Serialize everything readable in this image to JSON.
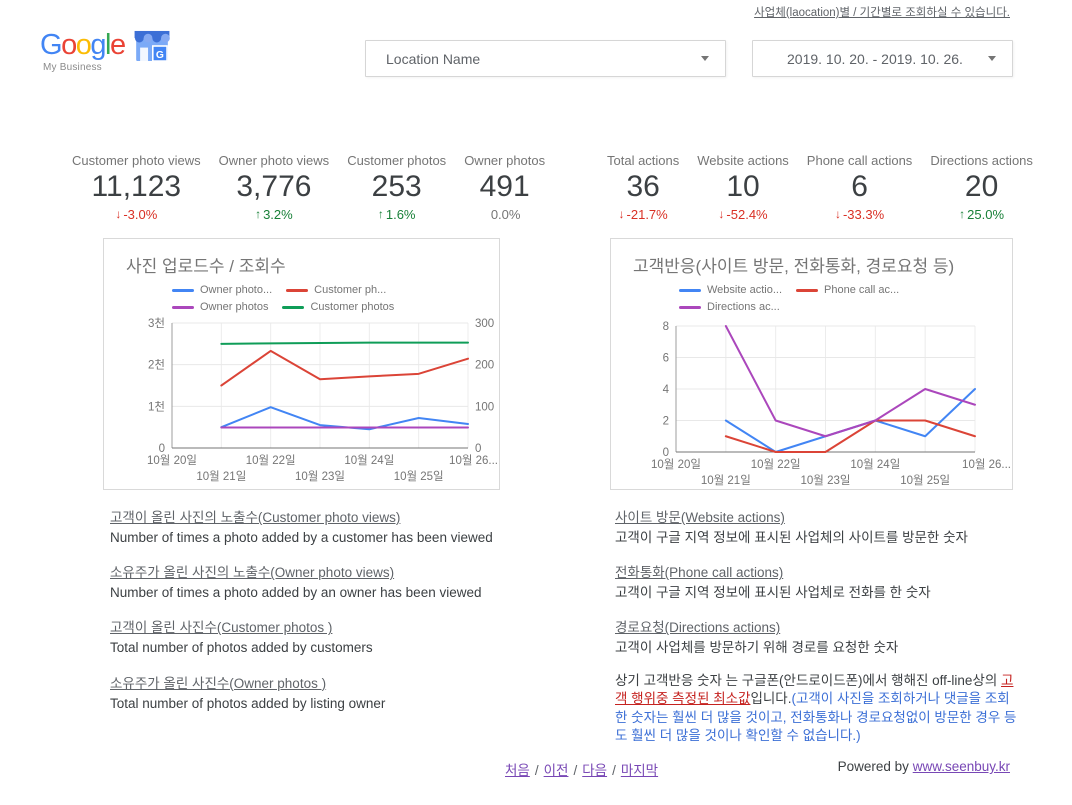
{
  "header": {
    "top_link": "사업체(laocation)별 / 기간별로 조회하실 수 있습니다.",
    "logo": {
      "letters": [
        {
          "ch": "G",
          "color": "#4285F4"
        },
        {
          "ch": "o",
          "color": "#EA4335"
        },
        {
          "ch": "o",
          "color": "#FBBC05"
        },
        {
          "ch": "g",
          "color": "#4285F4"
        },
        {
          "ch": "l",
          "color": "#34A853"
        },
        {
          "ch": "e",
          "color": "#EA4335"
        }
      ],
      "sub": "My Business",
      "icon_letter": "G"
    },
    "location_select": {
      "value": "Location Name"
    },
    "date_select": {
      "value": "2019. 10. 20. - 2019. 10. 26."
    }
  },
  "scorecards": {
    "photo_group": [
      {
        "label": "Customer photo views",
        "value": "11,123",
        "arrow": "↓",
        "delta": "-3.0%",
        "trend": "down",
        "color": "#d93025"
      },
      {
        "label": "Owner photo views",
        "value": "3,776",
        "arrow": "↑",
        "delta": "3.2%",
        "trend": "up",
        "color": "#188038"
      },
      {
        "label": "Customer photos",
        "value": "253",
        "arrow": "↑",
        "delta": "1.6%",
        "trend": "up",
        "color": "#188038"
      },
      {
        "label": "Owner photos",
        "value": "491",
        "arrow": "",
        "delta": "0.0%",
        "trend": "flat",
        "color": "#757575"
      }
    ],
    "action_group": [
      {
        "label": "Total actions",
        "value": "36",
        "arrow": "↓",
        "delta": "-21.7%",
        "trend": "down",
        "color": "#d93025"
      },
      {
        "label": "Website actions",
        "value": "10",
        "arrow": "↓",
        "delta": "-52.4%",
        "trend": "down",
        "color": "#d93025"
      },
      {
        "label": "Phone call actions",
        "value": "6",
        "arrow": "↓",
        "delta": "-33.3%",
        "trend": "down",
        "color": "#d93025"
      },
      {
        "label": "Directions actions",
        "value": "20",
        "arrow": "↑",
        "delta": "25.0%",
        "trend": "up",
        "color": "#188038"
      }
    ]
  },
  "chart_data": [
    {
      "type": "line",
      "title": "사진 업로드수 / 조회수",
      "x": [
        "10월 20일",
        "10월 21일",
        "10월 22일",
        "10월 23일",
        "10월 24일",
        "10월 25일",
        "10월 26일"
      ],
      "x_labels": [
        "10월 20일",
        "10월 21일",
        "10월 22일",
        "10월 23일",
        "10월 24일",
        "10월 25일",
        "10월 26..."
      ],
      "y_left": {
        "ticks": [
          "0",
          "1천",
          "2천",
          "3천"
        ],
        "max": 3000
      },
      "y_right": {
        "ticks": [
          "0",
          "100",
          "200",
          "300"
        ],
        "max": 300
      },
      "grid": true,
      "legend_position": "top",
      "series": [
        {
          "name": "Owner photo...",
          "full_name": "Owner photo views",
          "color": "#4285F4",
          "axis": "left",
          "values": [
            null,
            500,
            980,
            550,
            450,
            720,
            576
          ]
        },
        {
          "name": "Customer ph...",
          "full_name": "Customer photo views",
          "color": "#DB4437",
          "axis": "left",
          "values": [
            null,
            1500,
            2330,
            1650,
            1720,
            1780,
            2143
          ]
        },
        {
          "name": "Owner photos",
          "full_name": "Owner photos",
          "color": "#AB47BC",
          "axis": "left",
          "values": [
            null,
            491,
            491,
            491,
            491,
            491,
            491
          ]
        },
        {
          "name": "Customer photos",
          "full_name": "Customer photos",
          "color": "#0F9D58",
          "axis": "right",
          "values": [
            null,
            250,
            251,
            252,
            253,
            253,
            253
          ]
        }
      ]
    },
    {
      "type": "line",
      "title": "고객반응(사이트 방문, 전화통화, 경로요청 등)",
      "x": [
        "10월 20일",
        "10월 21일",
        "10월 22일",
        "10월 23일",
        "10월 24일",
        "10월 25일",
        "10월 26일"
      ],
      "x_labels": [
        "10월 20일",
        "10월 21일",
        "10월 22일",
        "10월 23일",
        "10월 24일",
        "10월 25일",
        "10월 26..."
      ],
      "y_left": {
        "ticks": [
          "0",
          "2",
          "4",
          "6",
          "8"
        ],
        "max": 8
      },
      "grid": true,
      "legend_position": "top",
      "series": [
        {
          "name": "Website actio...",
          "full_name": "Website actions",
          "color": "#4285F4",
          "axis": "left",
          "values": [
            null,
            2,
            0,
            1,
            2,
            1,
            4
          ]
        },
        {
          "name": "Phone call ac...",
          "full_name": "Phone call actions",
          "color": "#DB4437",
          "axis": "left",
          "values": [
            null,
            1,
            0,
            0,
            2,
            2,
            1
          ]
        },
        {
          "name": "Directions ac...",
          "full_name": "Directions actions",
          "color": "#AB47BC",
          "axis": "left",
          "values": [
            null,
            8,
            2,
            1,
            2,
            4,
            3
          ]
        }
      ]
    }
  ],
  "info_left": {
    "items": [
      {
        "link": "고객이 올린 사진의 노출수(Customer photo views)",
        "desc": "Number of times a photo added by a customer has been viewed"
      },
      {
        "link": "소유주가 올린 사진의 노출수(Owner photo views)",
        "desc": "Number of times a photo added by an owner has been viewed"
      },
      {
        "link": "고객이 올린 사진수(Customer photos )",
        "desc": "Total number of photos added by customers"
      },
      {
        "link": "소유주가 올린 사진수(Owner photos )",
        "desc": "Total number of photos added by listing owner"
      }
    ]
  },
  "info_right": {
    "items": [
      {
        "link": "사이트 방문(Website actions)",
        "desc": "고객이 구글 지역 정보에 표시된 사업체의 사이트를 방문한 숫자"
      },
      {
        "link": "전화통화(Phone call actions)",
        "desc": "고객이 구글 지역 정보에 표시된 사업체로 전화를 한 숫자"
      },
      {
        "link": "경로요청(Directions actions)",
        "desc": "고객이 사업체를 방문하기 위해 경로를 요청한 숫자"
      }
    ],
    "note": {
      "intro": "상기 고객반응 숫자 는 구글폰(안드로이드폰)에서 행해진 off-line상의 ",
      "highlight_red": "고객 행위중 측정된 최소값",
      "mid": "입니다.",
      "parenthetical_blue": "(고객이 사진을 조회하거나 댓글을 조회한 숫자는 훨씬 더 많을 것이고, 전화통화나 경로요청없이 방문한 경우 등도 훨씬 더 많을 것이나 확인할 수 없습니다.)"
    }
  },
  "footer": {
    "pagination": [
      "처음",
      "이전",
      "다음",
      "마지막"
    ],
    "separator": "/",
    "powered_by_label": "Powered by",
    "powered_by_link": "www.seenbuy.kr"
  }
}
